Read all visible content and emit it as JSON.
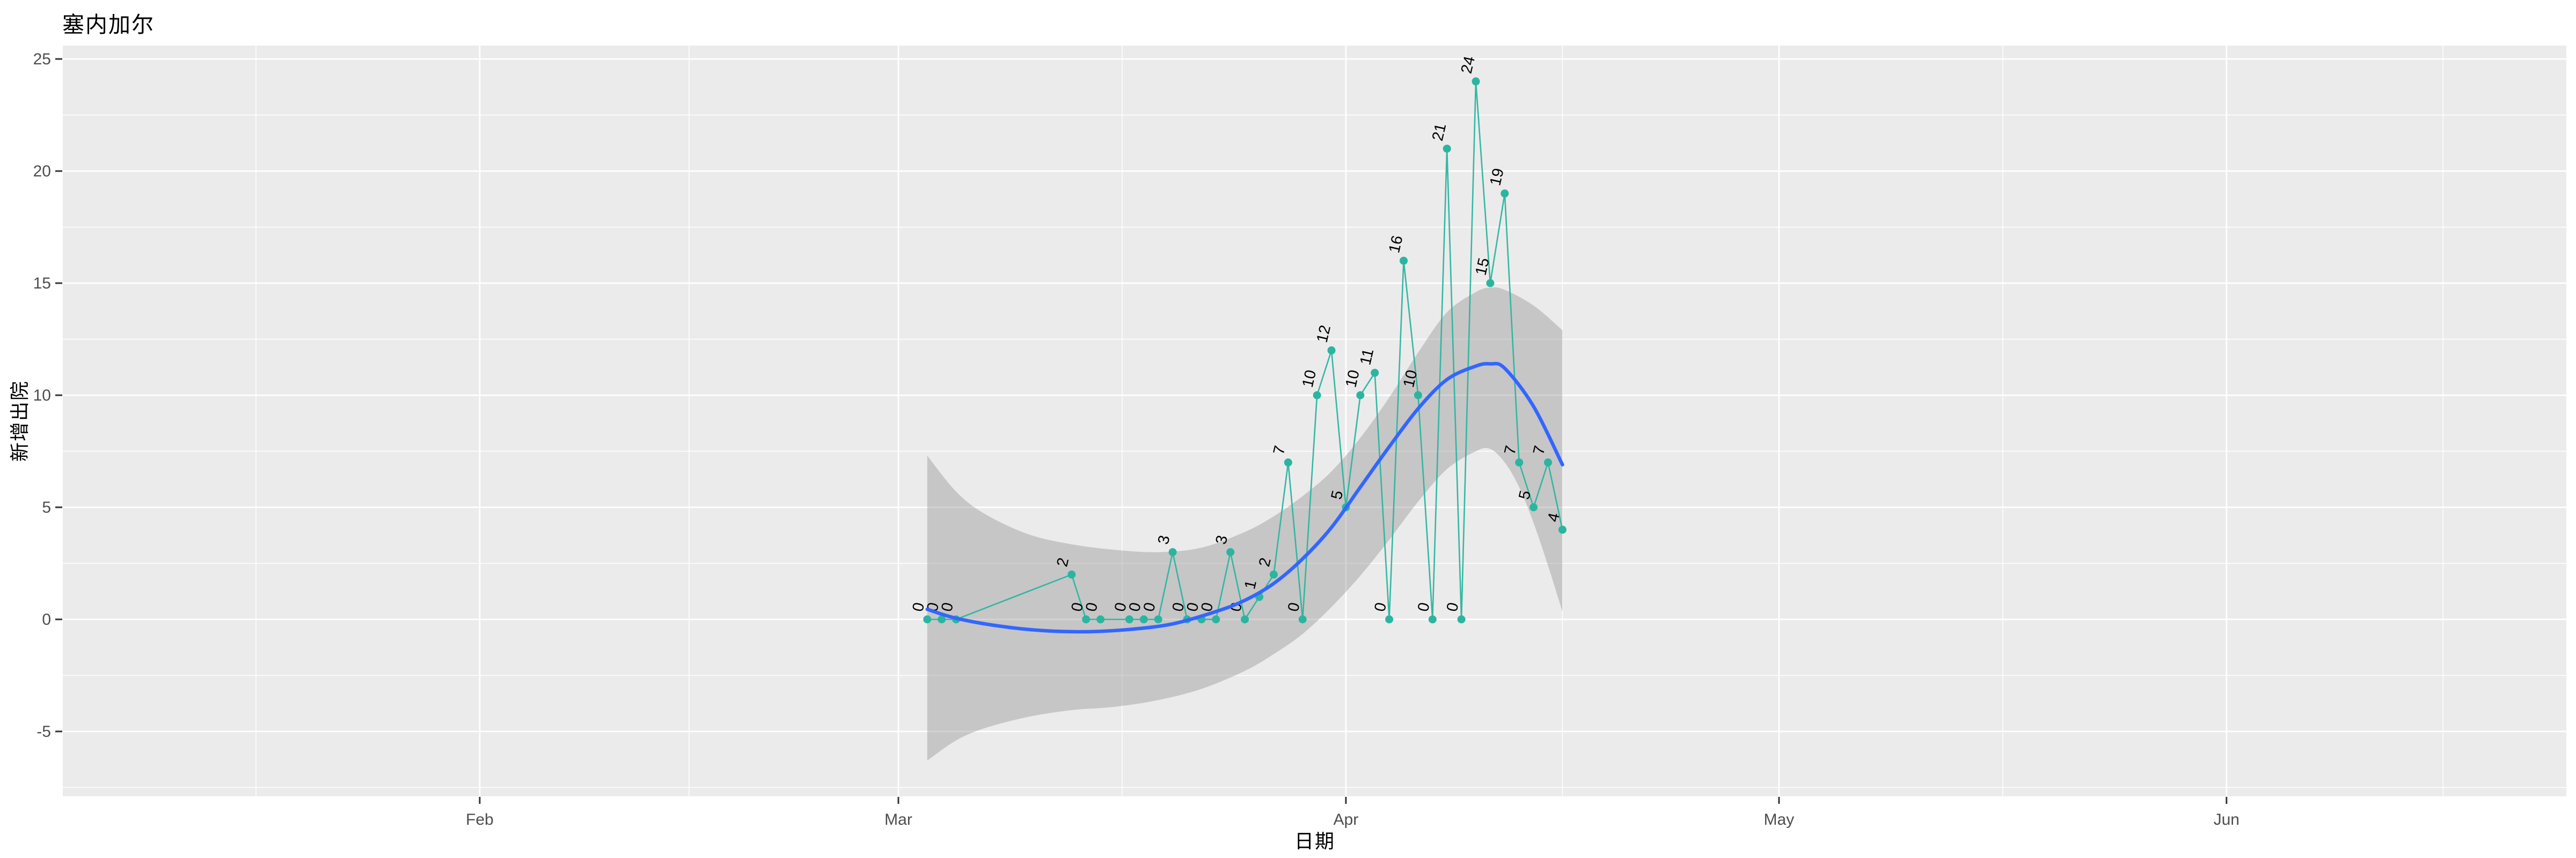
{
  "title": "塞内加尔",
  "chart_data": {
    "type": "line",
    "title": "塞内加尔",
    "xlabel": "日期",
    "ylabel": "新增出院",
    "grid": true,
    "legend": "none",
    "ylim": [
      -7.9,
      25.6
    ],
    "y_ticks": [
      25,
      20,
      15,
      10,
      5,
      0,
      -5
    ],
    "y_minor_ticks": [
      22.5,
      17.5,
      12.5,
      7.5,
      2.5,
      -2.5,
      -7.5
    ],
    "x_ticks": [
      {
        "label": "Feb",
        "day": -29
      },
      {
        "label": "Mar",
        "day": 0
      },
      {
        "label": "Apr",
        "day": 31
      },
      {
        "label": "May",
        "day": 61
      },
      {
        "label": "Jun",
        "day": 92
      }
    ],
    "x_minor_days": [
      -44.5,
      -14.5,
      15.5,
      46,
      76.5,
      107
    ],
    "series": [
      {
        "name": "daily-new-discharges",
        "kind": "line-points-labels",
        "color": "#2BB5A0",
        "points": [
          {
            "date": "03-03",
            "day": 2,
            "value": 0
          },
          {
            "date": "03-04",
            "day": 3,
            "value": 0
          },
          {
            "date": "03-05",
            "day": 4,
            "value": 0
          },
          {
            "date": "03-13",
            "day": 12,
            "value": 2
          },
          {
            "date": "03-14",
            "day": 13,
            "value": 0
          },
          {
            "date": "03-15",
            "day": 14,
            "value": 0
          },
          {
            "date": "03-17",
            "day": 16,
            "value": 0
          },
          {
            "date": "03-18",
            "day": 17,
            "value": 0
          },
          {
            "date": "03-19",
            "day": 18,
            "value": 0
          },
          {
            "date": "03-20",
            "day": 19,
            "value": 3
          },
          {
            "date": "03-21",
            "day": 20,
            "value": 0
          },
          {
            "date": "03-22",
            "day": 21,
            "value": 0
          },
          {
            "date": "03-23",
            "day": 22,
            "value": 0
          },
          {
            "date": "03-24",
            "day": 23,
            "value": 3
          },
          {
            "date": "03-25",
            "day": 24,
            "value": 0
          },
          {
            "date": "03-26",
            "day": 25,
            "value": 1
          },
          {
            "date": "03-27",
            "day": 26,
            "value": 2
          },
          {
            "date": "03-28",
            "day": 27,
            "value": 7
          },
          {
            "date": "03-29",
            "day": 28,
            "value": 0
          },
          {
            "date": "03-30",
            "day": 29,
            "value": 10
          },
          {
            "date": "03-31",
            "day": 30,
            "value": 12
          },
          {
            "date": "04-01",
            "day": 31,
            "value": 5
          },
          {
            "date": "04-02",
            "day": 32,
            "value": 10
          },
          {
            "date": "04-03",
            "day": 33,
            "value": 11
          },
          {
            "date": "04-04",
            "day": 34,
            "value": 0
          },
          {
            "date": "04-05",
            "day": 35,
            "value": 16
          },
          {
            "date": "04-06",
            "day": 36,
            "value": 10
          },
          {
            "date": "04-07",
            "day": 37,
            "value": 0
          },
          {
            "date": "04-08",
            "day": 38,
            "value": 21
          },
          {
            "date": "04-09",
            "day": 39,
            "value": 0
          },
          {
            "date": "04-10",
            "day": 40,
            "value": 24
          },
          {
            "date": "04-11",
            "day": 41,
            "value": 15
          },
          {
            "date": "04-12",
            "day": 42,
            "value": 19
          },
          {
            "date": "04-13",
            "day": 43,
            "value": 7
          },
          {
            "date": "04-14",
            "day": 44,
            "value": 5
          },
          {
            "date": "04-15",
            "day": 45,
            "value": 7
          },
          {
            "date": "04-16",
            "day": 46,
            "value": 4
          }
        ]
      },
      {
        "name": "loess-smooth",
        "kind": "smooth-line",
        "color": "#3366FF",
        "points": [
          [
            2,
            0.45
          ],
          [
            4,
            0.05
          ],
          [
            7,
            -0.3
          ],
          [
            10,
            -0.5
          ],
          [
            13,
            -0.55
          ],
          [
            16,
            -0.45
          ],
          [
            19,
            -0.2
          ],
          [
            22,
            0.35
          ],
          [
            24,
            0.85
          ],
          [
            26,
            1.6
          ],
          [
            28,
            2.7
          ],
          [
            30,
            4.1
          ],
          [
            32,
            5.9
          ],
          [
            34,
            7.7
          ],
          [
            36,
            9.4
          ],
          [
            38,
            10.7
          ],
          [
            40,
            11.3
          ],
          [
            41,
            11.4
          ],
          [
            42,
            11.2
          ],
          [
            44,
            9.5
          ],
          [
            46,
            6.9
          ]
        ]
      },
      {
        "name": "confidence-ribbon",
        "kind": "ribbon",
        "color": "rgba(125,125,125,0.34)",
        "upper": [
          [
            2,
            7.3
          ],
          [
            4,
            5.7
          ],
          [
            6,
            4.7
          ],
          [
            9,
            3.8
          ],
          [
            12,
            3.35
          ],
          [
            15,
            3.1
          ],
          [
            18,
            3.0
          ],
          [
            21,
            3.2
          ],
          [
            24,
            3.9
          ],
          [
            26,
            4.6
          ],
          [
            28,
            5.5
          ],
          [
            30,
            6.6
          ],
          [
            32,
            8.1
          ],
          [
            34,
            9.9
          ],
          [
            36,
            11.9
          ],
          [
            38,
            13.7
          ],
          [
            40,
            14.6
          ],
          [
            41,
            14.8
          ],
          [
            42,
            14.7
          ],
          [
            44,
            14.0
          ],
          [
            46,
            12.9
          ]
        ],
        "lower": [
          [
            2,
            -6.3
          ],
          [
            4,
            -5.4
          ],
          [
            6,
            -4.85
          ],
          [
            9,
            -4.35
          ],
          [
            12,
            -4.05
          ],
          [
            15,
            -3.9
          ],
          [
            18,
            -3.6
          ],
          [
            21,
            -3.1
          ],
          [
            24,
            -2.3
          ],
          [
            26,
            -1.55
          ],
          [
            28,
            -0.65
          ],
          [
            30,
            0.55
          ],
          [
            32,
            1.95
          ],
          [
            34,
            3.55
          ],
          [
            36,
            5.25
          ],
          [
            38,
            6.7
          ],
          [
            40,
            7.5
          ],
          [
            41,
            7.6
          ],
          [
            42,
            7.0
          ],
          [
            43,
            5.9
          ],
          [
            44,
            4.3
          ],
          [
            45,
            2.4
          ],
          [
            46,
            0.35
          ]
        ]
      }
    ],
    "style": {
      "panel_bg": "#EBEBEB",
      "grid_color": "#FFFFFF",
      "tick_mark_color": "#333333",
      "tick_label_color": "#4D4D4D",
      "point_label_color": "#000000",
      "title_color": "#000000"
    }
  }
}
